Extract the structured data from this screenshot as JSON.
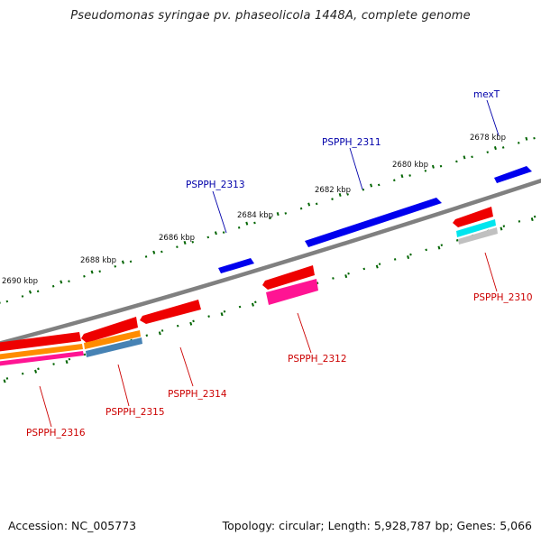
{
  "title": "Pseudomonas syringae pv. phaseolicola 1448A, complete genome",
  "footer": {
    "accession": "Accession: NC_005773",
    "summary": "Topology: circular; Length: 5,928,787 bp; Genes: 5,066"
  },
  "colors": {
    "backbone": "#808080",
    "tick": "#006400",
    "forward_gene": "#0000ee",
    "reverse_gene": "#ee0000",
    "forward_label": "#0000aa",
    "reverse_label": "#cc0000",
    "cds_orange": "#ff8c00",
    "cds_steelblue": "#4682b4",
    "cds_deeppink": "#ff1493",
    "cds_cyan": "#00e5ee",
    "cds_grey": "#c0c0c0"
  },
  "ruler": {
    "labels": [
      "2690 kbp",
      "2688 kbp",
      "2686 kbp",
      "2684 kbp",
      "2682 kbp",
      "2680 kbp",
      "2678 kbp"
    ]
  },
  "gene_labels": {
    "mexT": "mexT",
    "pspph_2311": "PSPPH_2311",
    "pspph_2313": "PSPPH_2313",
    "pspph_2310": "PSPPH_2310",
    "pspph_2312": "PSPPH_2312",
    "pspph_2314": "PSPPH_2314",
    "pspph_2315": "PSPPH_2315",
    "pspph_2316": "PSPPH_2316"
  }
}
